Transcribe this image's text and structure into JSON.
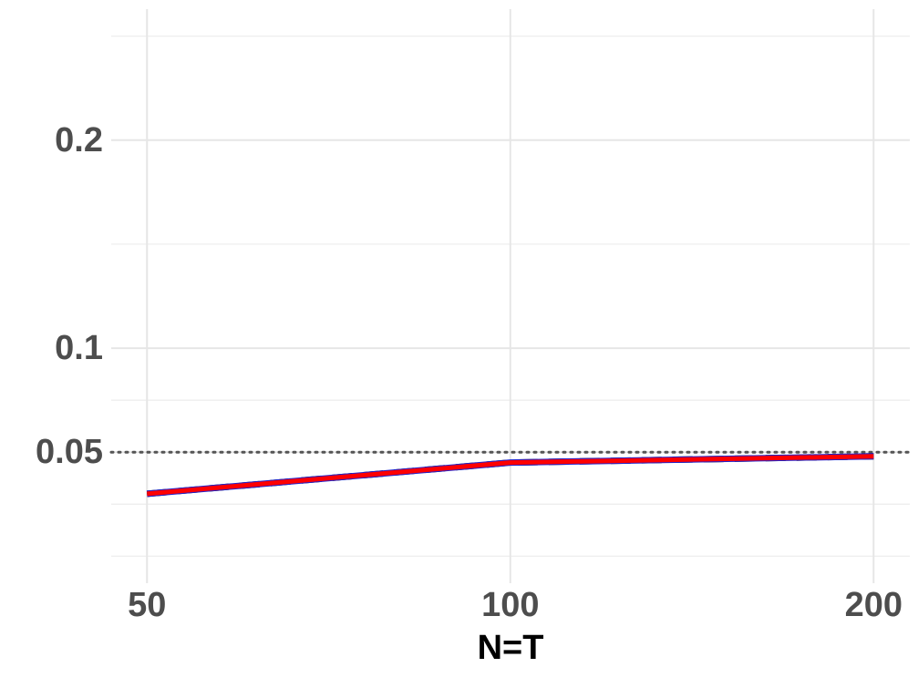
{
  "chart_data": {
    "type": "line",
    "x_label": "N=T",
    "x": [
      50,
      100,
      200
    ],
    "series": [
      {
        "color": "#000000",
        "dash": "dashed",
        "values": [
          0.03,
          0.045,
          0.048
        ]
      },
      {
        "color": "#2222cc",
        "dash": "solid",
        "values": [
          0.03,
          0.045,
          0.048
        ]
      },
      {
        "color": "#ff0000",
        "dash": "solid",
        "values": [
          0.03,
          0.045,
          0.048
        ]
      }
    ],
    "xscale": "log",
    "xlim": [
      46.7,
      214.3
    ],
    "xticks": [
      50,
      100,
      200
    ],
    "ylim": [
      -0.013,
      0.263
    ],
    "yticks": [
      0.05,
      0.1,
      0.2
    ],
    "minor_yticks": [
      0,
      0.025,
      0.075,
      0.15,
      0.25
    ],
    "reference_line": 0.05,
    "grid": true
  }
}
